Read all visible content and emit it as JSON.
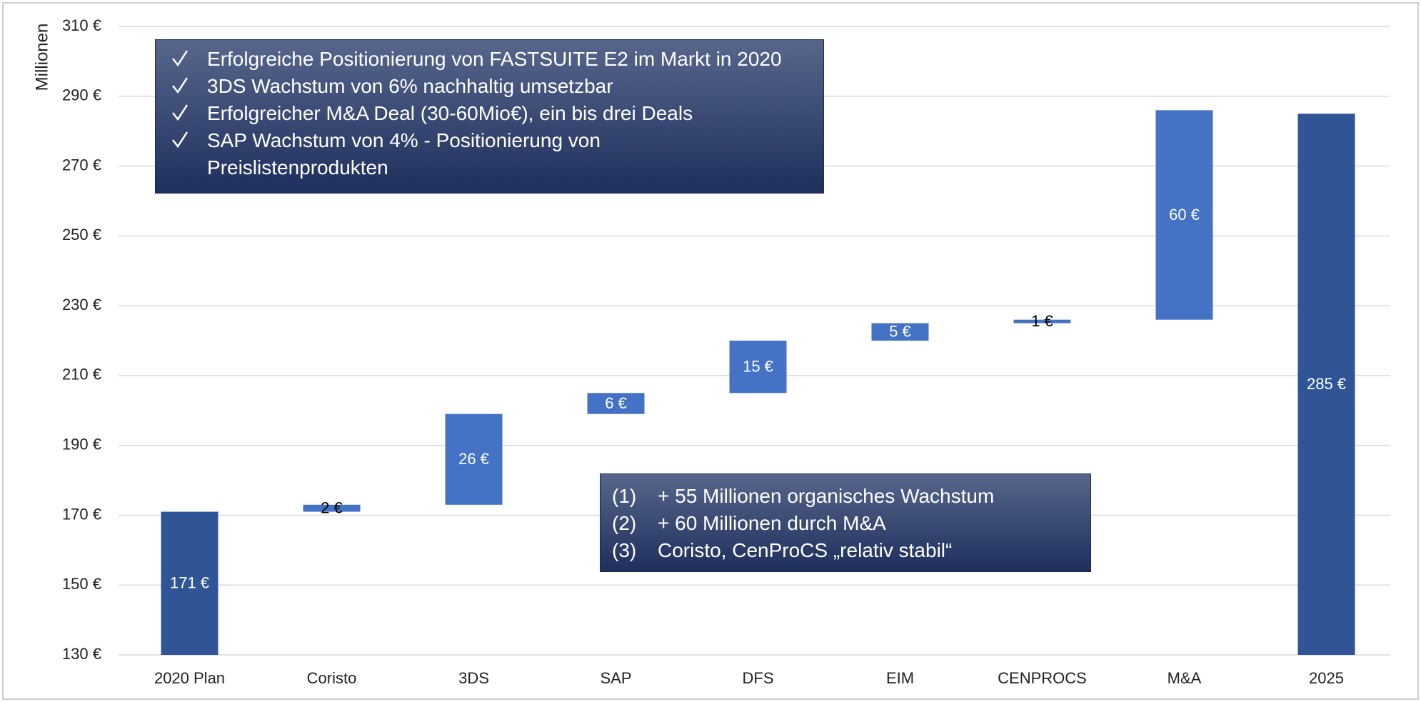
{
  "chart_data": {
    "type": "waterfall",
    "y_label": "Millionen",
    "categories": [
      "2020 Plan",
      "Coristo",
      "3DS",
      "SAP",
      "DFS",
      "EIM",
      "CENPROCS",
      "M&A",
      "2025"
    ],
    "values": [
      171,
      2,
      26,
      6,
      15,
      5,
      1,
      60,
      285
    ],
    "value_labels": [
      "171 €",
      "2 €",
      "26 €",
      "6 €",
      "15 €",
      "5 €",
      "1 €",
      "60 €",
      "285 €"
    ],
    "measure": [
      "absolute",
      "relative",
      "relative",
      "relative",
      "relative",
      "relative",
      "relative",
      "relative",
      "absolute"
    ],
    "colors": {
      "absolute": "#2f5597",
      "relative": "#4472c4"
    },
    "ylim": [
      130,
      310
    ],
    "yticks": [
      {
        "value": 130,
        "label": "130 €"
      },
      {
        "value": 150,
        "label": "150 €"
      },
      {
        "value": 170,
        "label": "170 €"
      },
      {
        "value": 190,
        "label": "190 €"
      },
      {
        "value": 210,
        "label": "210 €"
      },
      {
        "value": 230,
        "label": "230 €"
      },
      {
        "value": 250,
        "label": "250 €"
      },
      {
        "value": 270,
        "label": "270 €"
      },
      {
        "value": 290,
        "label": "290 €"
      },
      {
        "value": 310,
        "label": "310 €"
      }
    ],
    "grid": true,
    "annotations": [
      {
        "items": [
          "Erfolgreiche Positionierung von FASTSUITE E2 im Markt in 2020",
          "3DS Wachstum von 6% nachhaltig umsetzbar",
          "Erfolgreicher M&A Deal (30-60Mio€), ein bis drei Deals",
          "SAP Wachstum von 4% - Positionierung von Preislistenprodukten"
        ]
      },
      {
        "items": [
          {
            "marker": "(1)",
            "text": "+ 55 Millionen organisches Wachstum"
          },
          {
            "marker": "(2)",
            "text": "+ 60 Millionen durch M&A"
          },
          {
            "marker": "(3)",
            "text": "Coristo, CenProCS „relativ stabil“"
          }
        ]
      }
    ]
  }
}
